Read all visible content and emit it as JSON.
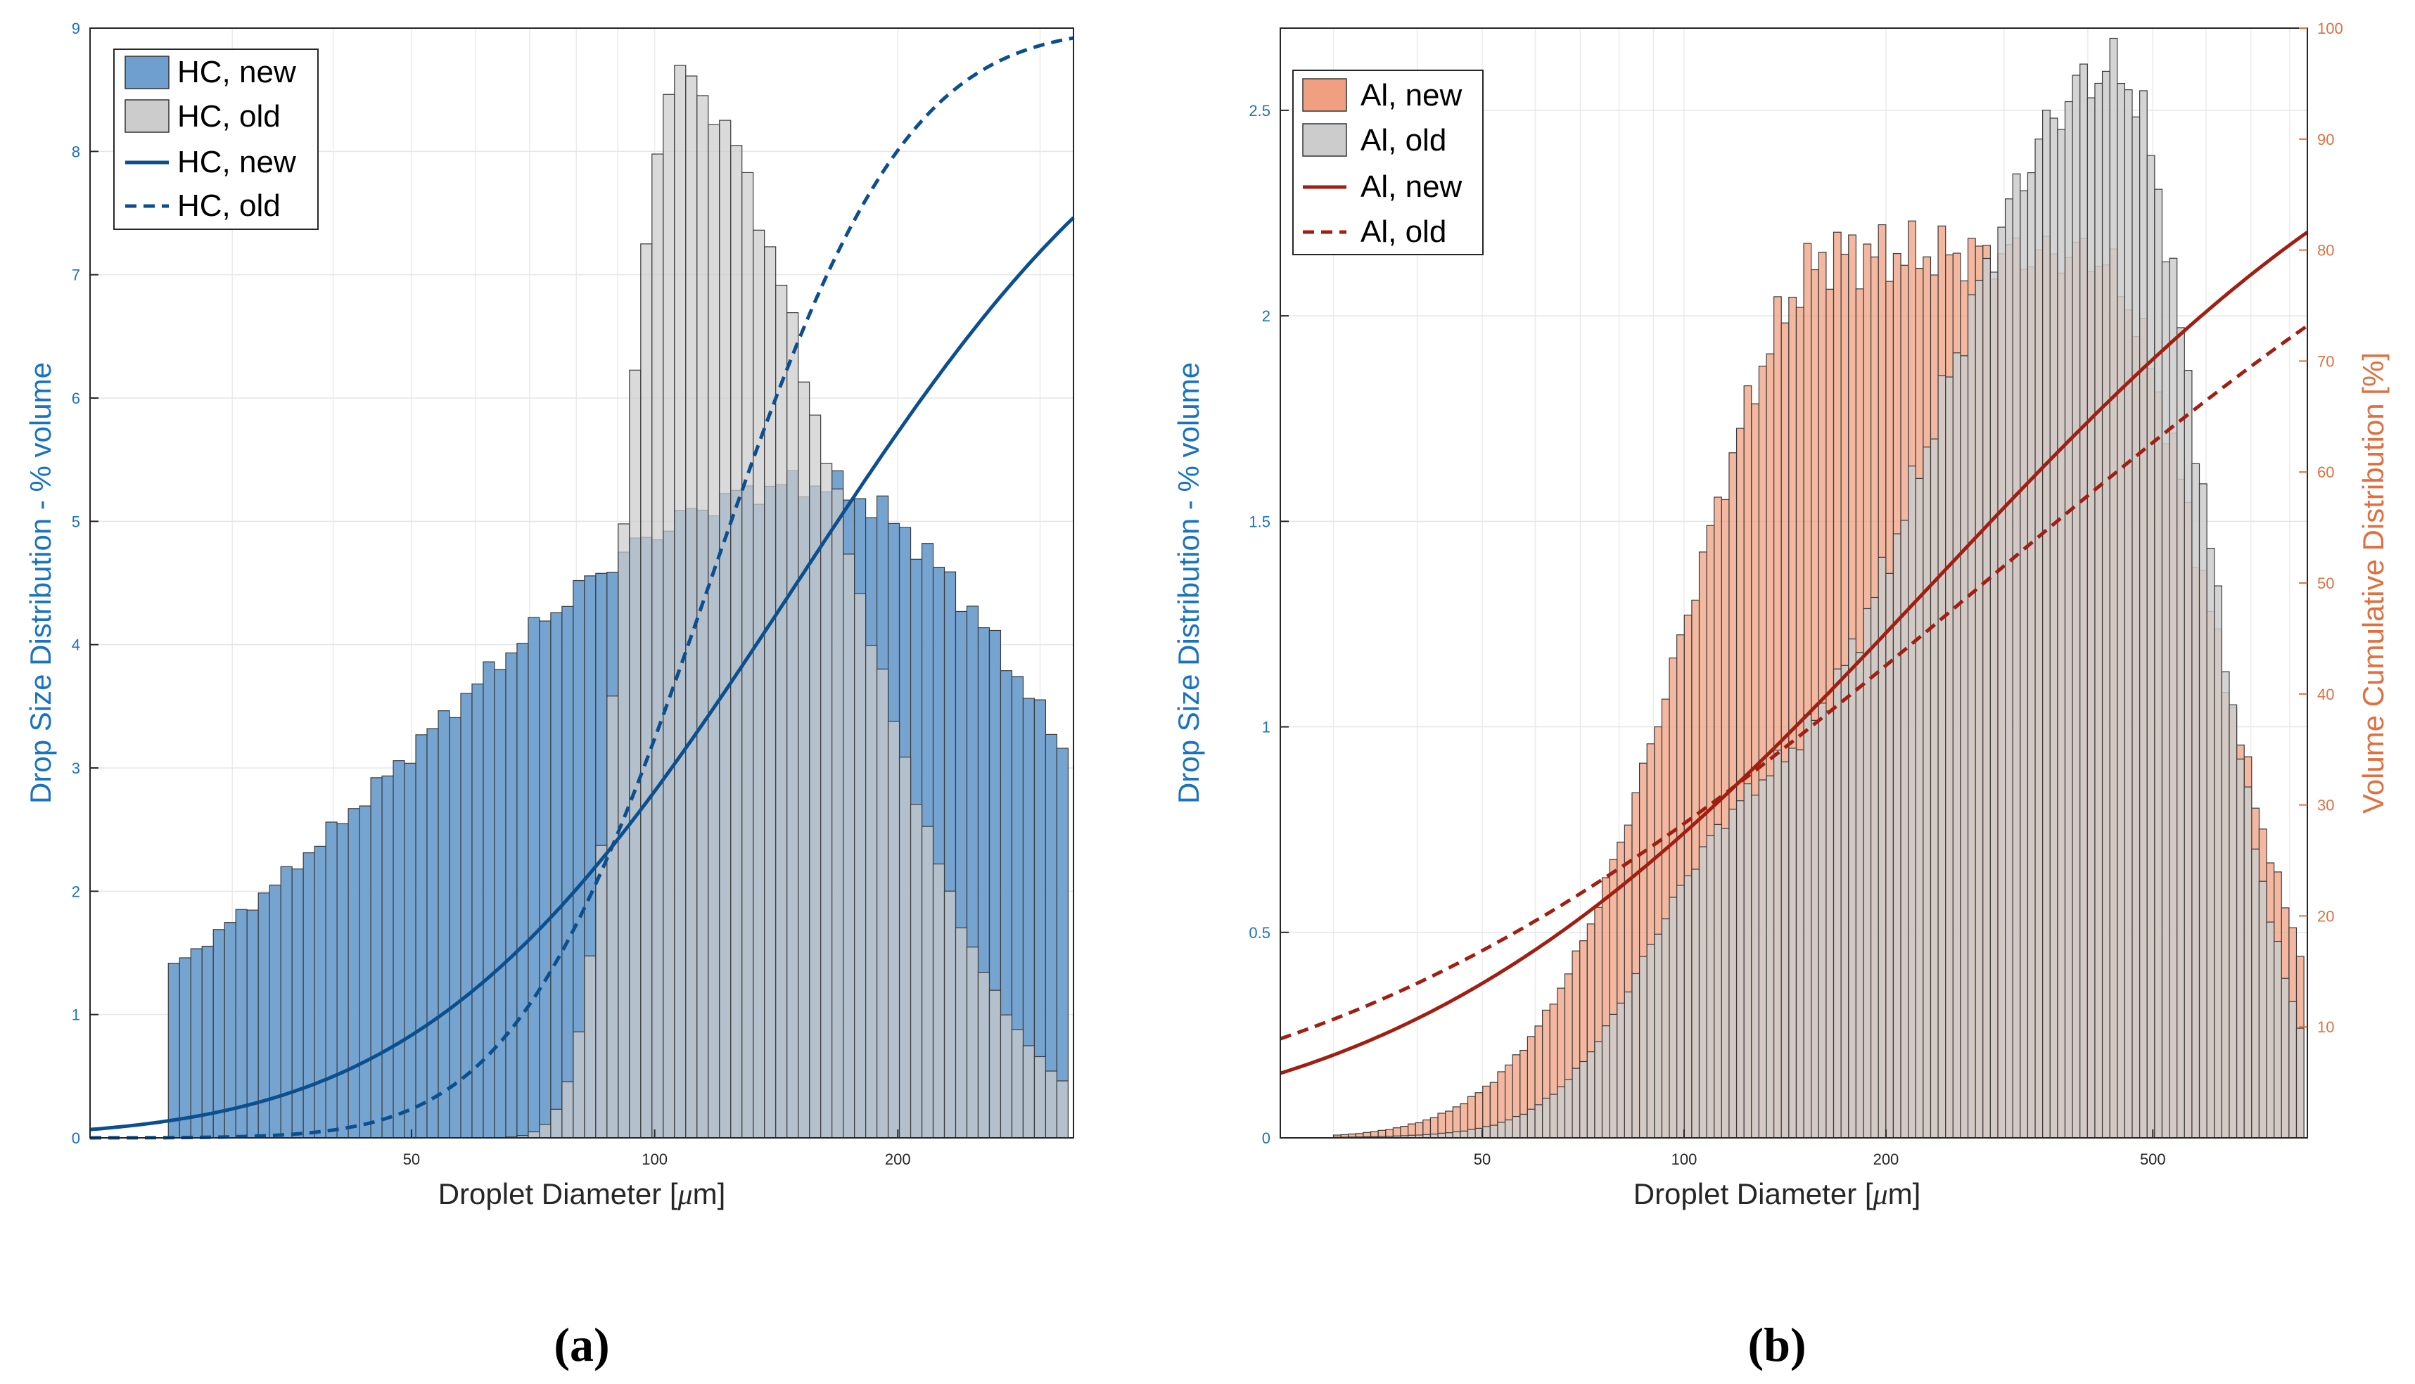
{
  "chart_data": [
    {
      "type": "bar",
      "panel_caption": "(a)",
      "xlabel_prefix": "Droplet Diameter [",
      "xlabel_mu": "μ",
      "xlabel_suffix": "m]",
      "ylabel_left": "Drop Size Distribution - % volume",
      "xscale": "log",
      "xlim": [
        20,
        330
      ],
      "ylim_left": [
        0,
        9
      ],
      "ylim_right": [
        0,
        100
      ],
      "xticks": [
        50,
        100,
        200
      ],
      "yticks_left": [
        0,
        1,
        2,
        3,
        4,
        5,
        6,
        7,
        8,
        9
      ],
      "grid": true,
      "legend_placement": "top-left",
      "legend": [
        "HC, new",
        "HC, old",
        "HC, new",
        "HC, old"
      ],
      "colors": {
        "new_bar": "#6f9fcf",
        "old_bar": "#cccccc",
        "line": "#0b4f8f",
        "axis": "#1a73bf"
      },
      "series": [
        {
          "name": "HC, new",
          "kind": "histogram",
          "x_range": [
            25,
            325
          ],
          "bins": 80,
          "peak_x": 155,
          "peak": 5.3,
          "sigma": 0.31,
          "tail_sigma": 0.48
        },
        {
          "name": "HC, old",
          "kind": "histogram",
          "x_range": [
            25,
            325
          ],
          "bins": 80,
          "peak_x": 106,
          "peak": 8.6,
          "sigma": 0.11,
          "tail_sigma": 0.62
        },
        {
          "name": "HC, new",
          "kind": "cumulative",
          "median_x": 150,
          "log_sigma": 0.36
        },
        {
          "name": "HC, old",
          "kind": "cumulative",
          "median_x": 117,
          "log_sigma": 0.19
        }
      ]
    },
    {
      "type": "bar",
      "panel_caption": "(b)",
      "xlabel_prefix": "Droplet Diameter [",
      "xlabel_mu": "μ",
      "xlabel_suffix": "m]",
      "ylabel_left": "Drop Size Distribution - % volume",
      "ylabel_right": "Volume Cumulative Distribution [%]",
      "xscale": "log",
      "xlim": [
        25,
        850
      ],
      "ylim_left": [
        0,
        2.7
      ],
      "ylim_right": [
        0,
        100
      ],
      "xticks": [
        50,
        100,
        200,
        500
      ],
      "yticks_left": [
        0,
        0.5,
        1,
        1.5,
        2,
        2.5
      ],
      "yticks_right": [
        10,
        20,
        30,
        40,
        50,
        60,
        70,
        80,
        90,
        100
      ],
      "grid": true,
      "legend_placement": "top-left",
      "legend": [
        "Al, new",
        "Al, old",
        "Al, new",
        "Al, old"
      ],
      "colors": {
        "new_bar": "#f0a080",
        "old_bar": "#cccccc",
        "line": "#a11f12",
        "axis_left": "#1a73bf",
        "axis_right": "#e07040"
      },
      "series": [
        {
          "name": "Al, new",
          "kind": "histogram",
          "x_range": [
            30,
            840
          ],
          "bins": 130,
          "plateau": [
            170,
            400
          ],
          "level": 2.15,
          "peak": 2.2
        },
        {
          "name": "Al, old",
          "kind": "histogram",
          "x_range": [
            30,
            840
          ],
          "bins": 130,
          "peak_x": 440,
          "peak": 2.6,
          "shoulder_x": 110,
          "shoulder": 1.1
        },
        {
          "name": "Al, new",
          "kind": "cumulative",
          "median_x": 235,
          "log_sigma": 0.62
        },
        {
          "name": "Al, old",
          "kind": "cumulative",
          "median_x": 280,
          "log_sigma": 0.78
        }
      ]
    }
  ]
}
